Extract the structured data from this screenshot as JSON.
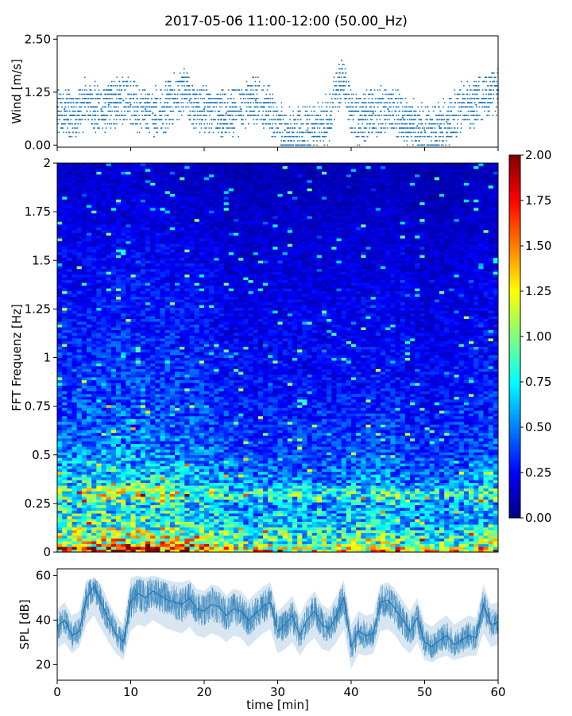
{
  "title": "2017-05-06 11:00-12:00 (50.00_Hz)",
  "chart_data": [
    {
      "type": "scatter",
      "panel": "wind",
      "ylabel": "Wind [m/s]",
      "xlim": [
        0,
        60
      ],
      "ylim": [
        -0.05,
        2.58
      ],
      "yticks": [
        "0.00",
        "1.25",
        "2.50"
      ],
      "yticks_values": [
        0,
        1.25,
        2.5
      ],
      "color": "#1f77b4",
      "x": [
        0,
        1,
        2,
        3,
        4,
        5,
        6,
        7,
        8,
        9,
        10,
        11,
        12,
        13,
        14,
        15,
        16,
        17,
        18,
        19,
        20,
        21,
        22,
        23,
        24,
        25,
        26,
        27,
        28,
        29,
        30,
        31,
        32,
        33,
        34,
        35,
        36,
        37,
        38,
        39,
        40,
        41,
        42,
        43,
        44,
        45,
        46,
        47,
        48,
        49,
        50,
        51,
        52,
        53,
        54,
        55,
        56,
        57,
        58,
        59,
        60
      ],
      "y": [
        0.9,
        0.85,
        0.7,
        0.8,
        1.0,
        0.9,
        0.85,
        0.95,
        1.0,
        1.05,
        0.95,
        0.9,
        0.85,
        0.75,
        0.8,
        0.9,
        1.1,
        1.2,
        1.05,
        0.9,
        0.85,
        0.8,
        0.7,
        0.75,
        0.8,
        0.85,
        1.0,
        1.05,
        0.9,
        0.8,
        0.6,
        0.35,
        0.3,
        0.3,
        0.35,
        0.4,
        0.5,
        0.6,
        1.3,
        1.5,
        0.8,
        0.6,
        0.7,
        0.75,
        0.8,
        0.85,
        0.8,
        0.65,
        0.5,
        0.45,
        0.35,
        0.4,
        0.45,
        0.55,
        0.7,
        0.9,
        1.0,
        0.95,
        1.1,
        1.2,
        1.3
      ]
    },
    {
      "type": "heatmap",
      "panel": "spectrogram",
      "ylabel": "FFT Frequenz [Hz]",
      "xlim": [
        0,
        60
      ],
      "ylim": [
        0,
        2
      ],
      "yticks": [
        "0",
        "0.25",
        "0.5",
        "0.75",
        "1",
        "1.25",
        "1.5",
        "1.75",
        "2"
      ],
      "yticks_values": [
        0,
        0.25,
        0.5,
        0.75,
        1,
        1.25,
        1.5,
        1.75,
        2
      ],
      "colormap": "jet",
      "colorbar": {
        "vmin": 0,
        "vmax": 2,
        "ticks": [
          "0.00",
          "0.25",
          "0.50",
          "0.75",
          "1.00",
          "1.25",
          "1.50",
          "1.75",
          "2.00"
        ],
        "ticks_values": [
          0,
          0.25,
          0.5,
          0.75,
          1.0,
          1.25,
          1.5,
          1.75,
          2.0
        ]
      },
      "freq_profile": {
        "freq": [
          0.0,
          0.05,
          0.1,
          0.15,
          0.2,
          0.25,
          0.3,
          0.35,
          0.4,
          0.5,
          0.6,
          0.7,
          0.8,
          1.0,
          1.25,
          1.5,
          1.75,
          2.0
        ],
        "level": [
          1.9,
          1.3,
          1.1,
          0.9,
          0.85,
          0.8,
          1.2,
          0.8,
          0.7,
          0.55,
          0.5,
          0.45,
          0.4,
          0.35,
          0.3,
          0.25,
          0.2,
          0.15
        ]
      },
      "time_profile": {
        "x": [
          0,
          5,
          10,
          15,
          20,
          25,
          30,
          35,
          40,
          45,
          50,
          55,
          60
        ],
        "level": [
          1.0,
          1.05,
          1.1,
          1.05,
          0.95,
          0.75,
          0.8,
          0.75,
          0.8,
          0.85,
          0.7,
          0.75,
          0.9
        ]
      }
    },
    {
      "type": "line",
      "panel": "spl",
      "ylabel": "SPL [dB]",
      "xlabel": "time [min]",
      "xlim": [
        0,
        60
      ],
      "ylim": [
        13,
        63
      ],
      "xticks": [
        "0",
        "10",
        "20",
        "30",
        "40",
        "50",
        "60"
      ],
      "xticks_values": [
        0,
        10,
        20,
        30,
        40,
        50,
        60
      ],
      "yticks": [
        "20",
        "40",
        "60"
      ],
      "yticks_values": [
        20,
        40,
        60
      ],
      "color": "#1f77b4",
      "x": [
        0,
        1,
        2,
        3,
        4,
        5,
        6,
        7,
        8,
        9,
        10,
        11,
        12,
        13,
        14,
        15,
        16,
        17,
        18,
        19,
        20,
        21,
        22,
        23,
        24,
        25,
        26,
        27,
        28,
        29,
        30,
        31,
        32,
        33,
        34,
        35,
        36,
        37,
        38,
        39,
        40,
        41,
        42,
        43,
        44,
        45,
        46,
        47,
        48,
        49,
        50,
        51,
        52,
        53,
        54,
        55,
        56,
        57,
        58,
        59,
        60
      ],
      "y": [
        37,
        40,
        33,
        35,
        50,
        55,
        48,
        40,
        34,
        30,
        48,
        52,
        50,
        53,
        51,
        49,
        48,
        47,
        50,
        45,
        44,
        47,
        46,
        42,
        45,
        44,
        40,
        43,
        46,
        48,
        35,
        38,
        42,
        33,
        40,
        44,
        38,
        36,
        42,
        50,
        28,
        35,
        33,
        34,
        48,
        49,
        45,
        40,
        35,
        41,
        30,
        28,
        31,
        33,
        29,
        31,
        33,
        32,
        47,
        38,
        39
      ],
      "y_low": [
        27,
        30,
        25,
        28,
        38,
        42,
        36,
        30,
        25,
        22,
        35,
        38,
        37,
        40,
        38,
        36,
        35,
        34,
        37,
        33,
        32,
        34,
        33,
        30,
        33,
        32,
        28,
        31,
        34,
        36,
        25,
        27,
        30,
        24,
        29,
        32,
        27,
        26,
        30,
        36,
        18,
        25,
        24,
        25,
        35,
        36,
        33,
        28,
        25,
        30,
        22,
        21,
        23,
        24,
        22,
        23,
        24,
        24,
        34,
        28,
        29
      ],
      "y_high": [
        45,
        48,
        42,
        44,
        58,
        59,
        56,
        48,
        42,
        38,
        59,
        60,
        59,
        60,
        59,
        58,
        57,
        57,
        58,
        54,
        53,
        56,
        55,
        51,
        54,
        53,
        49,
        52,
        55,
        57,
        44,
        47,
        51,
        42,
        49,
        53,
        47,
        45,
        51,
        58,
        38,
        44,
        42,
        43,
        56,
        57,
        54,
        49,
        44,
        50,
        39,
        37,
        40,
        42,
        38,
        40,
        42,
        41,
        56,
        47,
        48
      ]
    }
  ]
}
